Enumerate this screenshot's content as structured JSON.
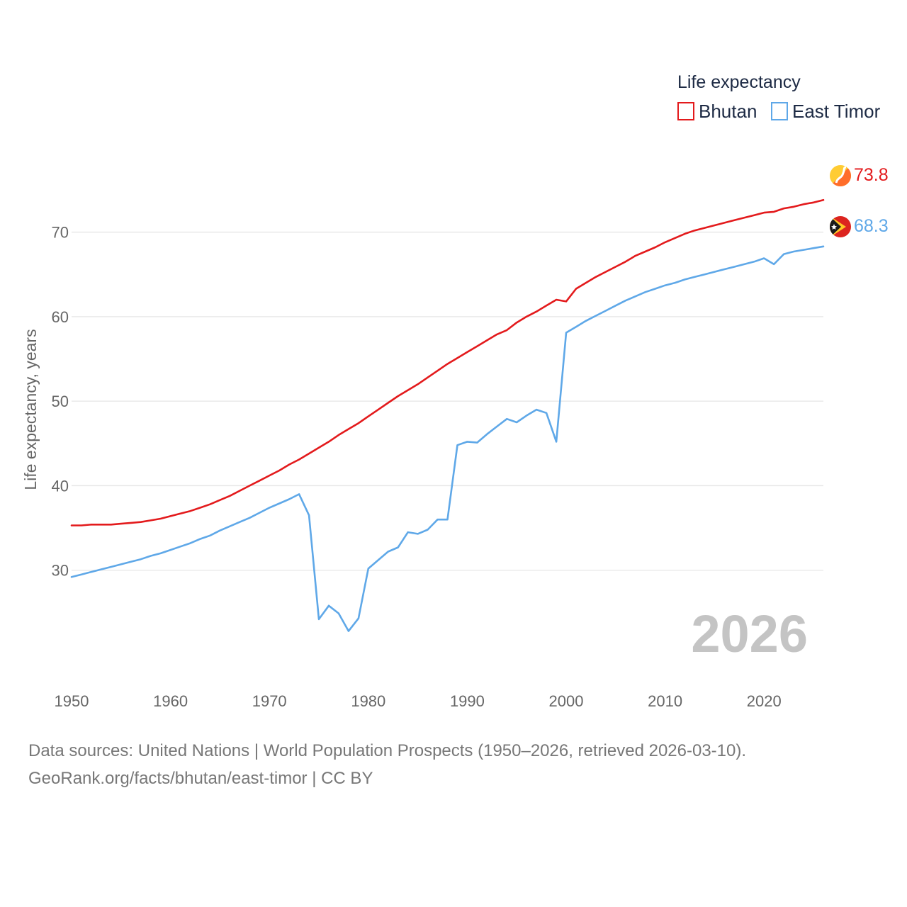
{
  "legend": {
    "title": "Life expectancy",
    "items": [
      {
        "name": "Bhutan",
        "color": "#e31a1c"
      },
      {
        "name": "East Timor",
        "color": "#5fa8e8"
      }
    ]
  },
  "year_label": "2026",
  "footer": {
    "line1": "Data sources: United Nations | World Population Prospects (1950–2026, retrieved 2026-03-10).",
    "line2": "GeoRank.org/facts/bhutan/east-timor | CC BY"
  },
  "chart_data": {
    "type": "line",
    "title": "Life expectancy",
    "xlabel": "",
    "ylabel": "Life expectancy, years",
    "xlim": [
      1950,
      2026
    ],
    "ylim": [
      19.5,
      76.5
    ],
    "xticks": [
      1950,
      1960,
      1970,
      1980,
      1990,
      2000,
      2010,
      2020
    ],
    "yticks": [
      30,
      40,
      50,
      60,
      70
    ],
    "grid": true,
    "legend_position": "top-right",
    "series": [
      {
        "name": "Bhutan",
        "color": "#e31a1c",
        "end_label": "73.8",
        "points": [
          [
            1950,
            35.3
          ],
          [
            1951,
            35.3
          ],
          [
            1952,
            35.4
          ],
          [
            1953,
            35.4
          ],
          [
            1954,
            35.4
          ],
          [
            1955,
            35.5
          ],
          [
            1956,
            35.6
          ],
          [
            1957,
            35.7
          ],
          [
            1958,
            35.9
          ],
          [
            1959,
            36.1
          ],
          [
            1960,
            36.4
          ],
          [
            1961,
            36.7
          ],
          [
            1962,
            37.0
          ],
          [
            1963,
            37.4
          ],
          [
            1964,
            37.8
          ],
          [
            1965,
            38.3
          ],
          [
            1966,
            38.8
          ],
          [
            1967,
            39.4
          ],
          [
            1968,
            40.0
          ],
          [
            1969,
            40.6
          ],
          [
            1970,
            41.2
          ],
          [
            1971,
            41.8
          ],
          [
            1972,
            42.5
          ],
          [
            1973,
            43.1
          ],
          [
            1974,
            43.8
          ],
          [
            1975,
            44.5
          ],
          [
            1976,
            45.2
          ],
          [
            1977,
            46.0
          ],
          [
            1978,
            46.7
          ],
          [
            1979,
            47.4
          ],
          [
            1980,
            48.2
          ],
          [
            1981,
            49.0
          ],
          [
            1982,
            49.8
          ],
          [
            1983,
            50.6
          ],
          [
            1984,
            51.3
          ],
          [
            1985,
            52.0
          ],
          [
            1986,
            52.8
          ],
          [
            1987,
            53.6
          ],
          [
            1988,
            54.4
          ],
          [
            1989,
            55.1
          ],
          [
            1990,
            55.8
          ],
          [
            1991,
            56.5
          ],
          [
            1992,
            57.2
          ],
          [
            1993,
            57.9
          ],
          [
            1994,
            58.4
          ],
          [
            1995,
            59.3
          ],
          [
            1996,
            60.0
          ],
          [
            1997,
            60.6
          ],
          [
            1998,
            61.3
          ],
          [
            1999,
            62.0
          ],
          [
            2000,
            61.8
          ],
          [
            2001,
            63.3
          ],
          [
            2002,
            64.0
          ],
          [
            2003,
            64.7
          ],
          [
            2004,
            65.3
          ],
          [
            2005,
            65.9
          ],
          [
            2006,
            66.5
          ],
          [
            2007,
            67.2
          ],
          [
            2008,
            67.7
          ],
          [
            2009,
            68.2
          ],
          [
            2010,
            68.8
          ],
          [
            2011,
            69.3
          ],
          [
            2012,
            69.8
          ],
          [
            2013,
            70.2
          ],
          [
            2014,
            70.5
          ],
          [
            2015,
            70.8
          ],
          [
            2016,
            71.1
          ],
          [
            2017,
            71.4
          ],
          [
            2018,
            71.7
          ],
          [
            2019,
            72.0
          ],
          [
            2020,
            72.3
          ],
          [
            2021,
            72.4
          ],
          [
            2022,
            72.8
          ],
          [
            2023,
            73.0
          ],
          [
            2024,
            73.3
          ],
          [
            2025,
            73.5
          ],
          [
            2026,
            73.8
          ]
        ]
      },
      {
        "name": "East Timor",
        "color": "#5fa8e8",
        "end_label": "68.3",
        "points": [
          [
            1950,
            29.2
          ],
          [
            1951,
            29.5
          ],
          [
            1952,
            29.8
          ],
          [
            1953,
            30.1
          ],
          [
            1954,
            30.4
          ],
          [
            1955,
            30.7
          ],
          [
            1956,
            31.0
          ],
          [
            1957,
            31.3
          ],
          [
            1958,
            31.7
          ],
          [
            1959,
            32.0
          ],
          [
            1960,
            32.4
          ],
          [
            1961,
            32.8
          ],
          [
            1962,
            33.2
          ],
          [
            1963,
            33.7
          ],
          [
            1964,
            34.1
          ],
          [
            1965,
            34.7
          ],
          [
            1966,
            35.2
          ],
          [
            1967,
            35.7
          ],
          [
            1968,
            36.2
          ],
          [
            1969,
            36.8
          ],
          [
            1970,
            37.4
          ],
          [
            1971,
            37.9
          ],
          [
            1972,
            38.4
          ],
          [
            1973,
            39.0
          ],
          [
            1974,
            36.5
          ],
          [
            1975,
            24.2
          ],
          [
            1976,
            25.8
          ],
          [
            1977,
            24.9
          ],
          [
            1978,
            22.8
          ],
          [
            1979,
            24.3
          ],
          [
            1980,
            30.2
          ],
          [
            1981,
            31.2
          ],
          [
            1982,
            32.2
          ],
          [
            1983,
            32.7
          ],
          [
            1984,
            34.5
          ],
          [
            1985,
            34.3
          ],
          [
            1986,
            34.8
          ],
          [
            1987,
            36.0
          ],
          [
            1988,
            36.0
          ],
          [
            1989,
            44.8
          ],
          [
            1990,
            45.2
          ],
          [
            1991,
            45.1
          ],
          [
            1992,
            46.1
          ],
          [
            1993,
            47.0
          ],
          [
            1994,
            47.9
          ],
          [
            1995,
            47.5
          ],
          [
            1996,
            48.3
          ],
          [
            1997,
            49.0
          ],
          [
            1998,
            48.6
          ],
          [
            1999,
            45.2
          ],
          [
            2000,
            58.1
          ],
          [
            2001,
            58.8
          ],
          [
            2002,
            59.5
          ],
          [
            2003,
            60.1
          ],
          [
            2004,
            60.7
          ],
          [
            2005,
            61.3
          ],
          [
            2006,
            61.9
          ],
          [
            2007,
            62.4
          ],
          [
            2008,
            62.9
          ],
          [
            2009,
            63.3
          ],
          [
            2010,
            63.7
          ],
          [
            2011,
            64.0
          ],
          [
            2012,
            64.4
          ],
          [
            2013,
            64.7
          ],
          [
            2014,
            65.0
          ],
          [
            2015,
            65.3
          ],
          [
            2016,
            65.6
          ],
          [
            2017,
            65.9
          ],
          [
            2018,
            66.2
          ],
          [
            2019,
            66.5
          ],
          [
            2020,
            66.9
          ],
          [
            2021,
            66.2
          ],
          [
            2022,
            67.4
          ],
          [
            2023,
            67.7
          ],
          [
            2024,
            67.9
          ],
          [
            2025,
            68.1
          ],
          [
            2026,
            68.3
          ]
        ]
      }
    ]
  }
}
